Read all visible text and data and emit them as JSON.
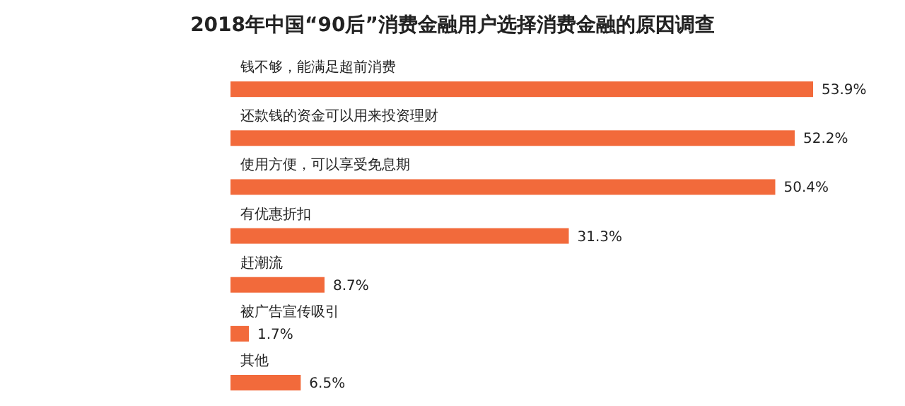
{
  "chart_data": {
    "type": "bar",
    "orientation": "horizontal",
    "title": "2018年中国“90后”消费金融用户选择消费金融的原因调查",
    "categories": [
      "钱不够，能满足超前消费",
      "还款钱的资金可以用来投资理财",
      "使用方便，可以享受免息期",
      "有优惠折扣",
      "赶潮流",
      "被广告宣传吸引",
      "其他"
    ],
    "values": [
      53.9,
      52.2,
      50.4,
      31.3,
      8.7,
      1.7,
      6.5
    ],
    "value_labels": [
      "53.9%",
      "52.2%",
      "50.4%",
      "31.3%",
      "8.7%",
      "1.7%",
      "6.5%"
    ],
    "color": "#f26a3b"
  }
}
